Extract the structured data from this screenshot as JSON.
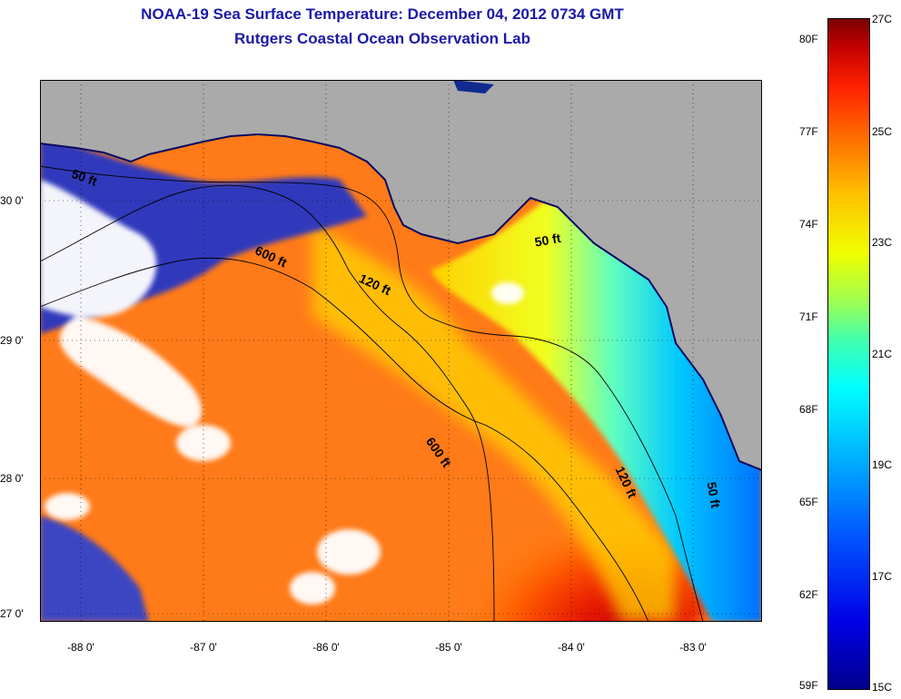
{
  "title": {
    "line1": "NOAA-19 Sea Surface Temperature:  December 04, 2012 0734 GMT",
    "line2": "Rutgers Coastal Ocean Observation Lab"
  },
  "map": {
    "lat_labels": [
      "30 0'",
      "29 0'",
      "28 0'",
      "27 0'"
    ],
    "lon_labels": [
      "-88 0'",
      "-87 0'",
      "-86 0'",
      "-85 0'",
      "-84 0'",
      "-83 0'"
    ],
    "lat_range": [
      26.95,
      30.85
    ],
    "lon_range": [
      -88.35,
      -82.45
    ],
    "contour_labels": [
      {
        "text": "50 ft",
        "lon": -88.1,
        "lat": 30.15
      },
      {
        "text": "600 ft",
        "lon": -86.6,
        "lat": 29.6
      },
      {
        "text": "120 ft",
        "lon": -85.75,
        "lat": 29.4
      },
      {
        "text": "50 ft",
        "lon": -84.3,
        "lat": 29.65
      },
      {
        "text": "600 ft",
        "lon": -85.2,
        "lat": 28.25
      },
      {
        "text": "120 ft",
        "lon": -83.65,
        "lat": 28.05
      },
      {
        "text": "50 ft",
        "lon": -82.9,
        "lat": 27.95
      }
    ],
    "colors": {
      "land": "#aaaaaa",
      "cloud": "#ffffff",
      "contour": "#000000"
    }
  },
  "colorbar": {
    "f_labels": [
      "80F",
      "77F",
      "74F",
      "71F",
      "68F",
      "65F",
      "62F",
      "59F"
    ],
    "c_labels": [
      "27C",
      "25C",
      "23C",
      "21C",
      "19C",
      "17C",
      "15C"
    ],
    "range_c": [
      15,
      27
    ]
  }
}
